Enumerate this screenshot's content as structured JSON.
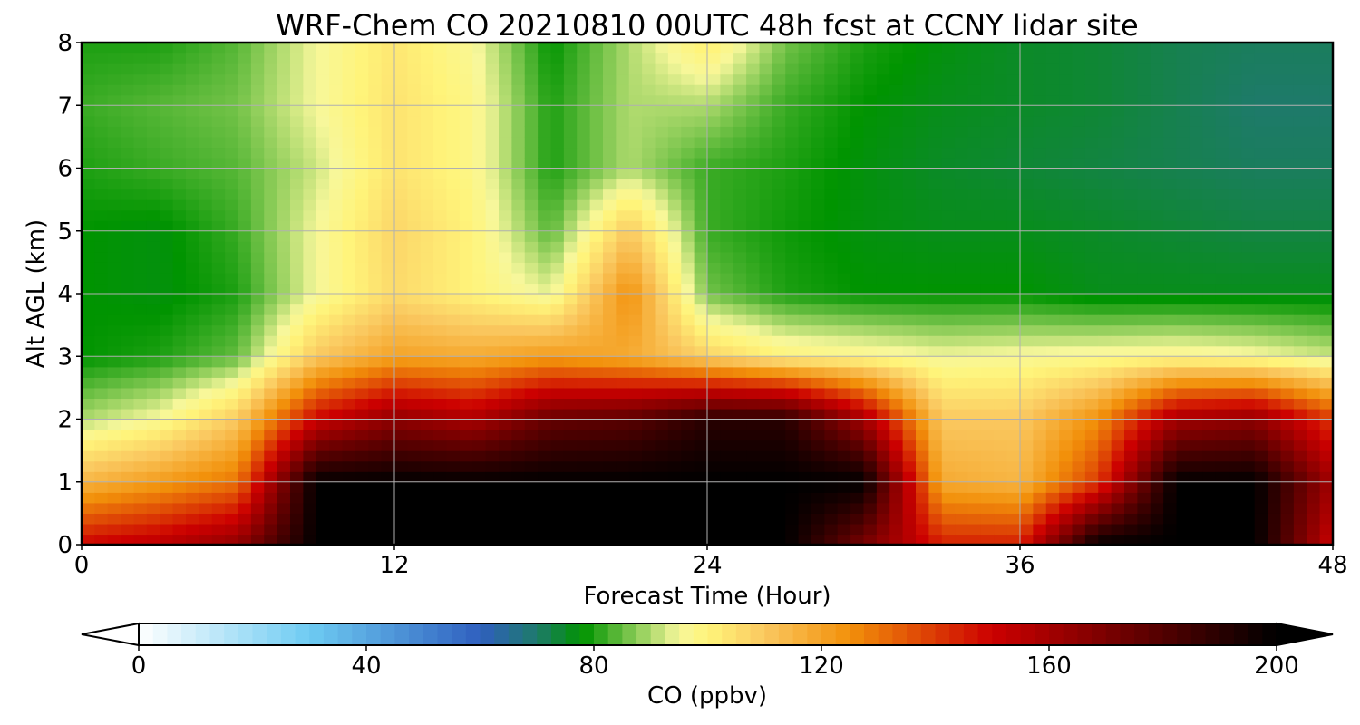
{
  "chart_data": {
    "type": "heatmap",
    "title": "WRF-Chem CO  20210810 00UTC 48h fcst at CCNY lidar site",
    "xlabel": "Forecast Time (Hour)",
    "ylabel": "Alt AGL (km)",
    "xlim": [
      0,
      48
    ],
    "ylim": [
      0,
      8
    ],
    "xticks": [
      0,
      12,
      24,
      36,
      48
    ],
    "yticks": [
      0,
      1,
      2,
      3,
      4,
      5,
      6,
      7,
      8
    ],
    "grid": true,
    "x": [
      0,
      3,
      6,
      9,
      12,
      15,
      18,
      21,
      24,
      27,
      30,
      33,
      36,
      39,
      42,
      45,
      48
    ],
    "y": [
      0,
      1,
      2,
      3,
      4,
      5,
      6,
      7,
      8
    ],
    "z": [
      [
        150,
        155,
        165,
        200,
        200,
        200,
        200,
        200,
        200,
        200,
        170,
        145,
        145,
        200,
        200,
        200,
        150
      ],
      [
        115,
        122,
        130,
        200,
        200,
        200,
        200,
        200,
        200,
        200,
        200,
        118,
        115,
        140,
        200,
        200,
        160
      ],
      [
        90,
        96,
        110,
        150,
        165,
        158,
        175,
        178,
        190,
        190,
        160,
        110,
        110,
        125,
        160,
        165,
        140
      ],
      [
        78,
        80,
        85,
        110,
        120,
        118,
        122,
        118,
        108,
        100,
        98,
        95,
        96,
        97,
        98,
        96,
        92
      ],
      [
        78,
        77,
        80,
        95,
        106,
        100,
        94,
        125,
        86,
        80,
        78,
        78,
        78,
        76,
        76,
        76,
        76
      ],
      [
        78,
        77,
        82,
        95,
        107,
        100,
        84,
        110,
        82,
        79,
        77,
        76,
        76,
        75,
        74,
        73,
        73
      ],
      [
        80,
        82,
        84,
        92,
        104,
        98,
        80,
        90,
        82,
        80,
        77,
        75,
        74,
        73,
        72,
        71,
        71
      ],
      [
        82,
        84,
        86,
        95,
        104,
        98,
        80,
        90,
        90,
        82,
        78,
        76,
        75,
        74,
        72,
        70,
        70
      ],
      [
        80,
        80,
        84,
        95,
        103,
        96,
        78,
        90,
        102,
        86,
        80,
        77,
        75,
        74,
        72,
        71,
        71
      ]
    ],
    "colorbar": {
      "label": "CO  (ppbv)",
      "min": 0,
      "max": 200,
      "ticks": [
        0,
        40,
        80,
        120,
        160,
        200
      ],
      "extend": "both",
      "colors": [
        [
          0,
          "#ffffff"
        ],
        [
          30,
          "#6ecbf2"
        ],
        [
          60,
          "#2f5fbf"
        ],
        [
          70,
          "#1e7a6a"
        ],
        [
          78,
          "#009400"
        ],
        [
          95,
          "#f7f79b"
        ],
        [
          100,
          "#fff47a"
        ],
        [
          110,
          "#fac860"
        ],
        [
          125,
          "#f2900a"
        ],
        [
          150,
          "#cc0000"
        ],
        [
          175,
          "#660000"
        ],
        [
          200,
          "#000000"
        ]
      ]
    }
  }
}
